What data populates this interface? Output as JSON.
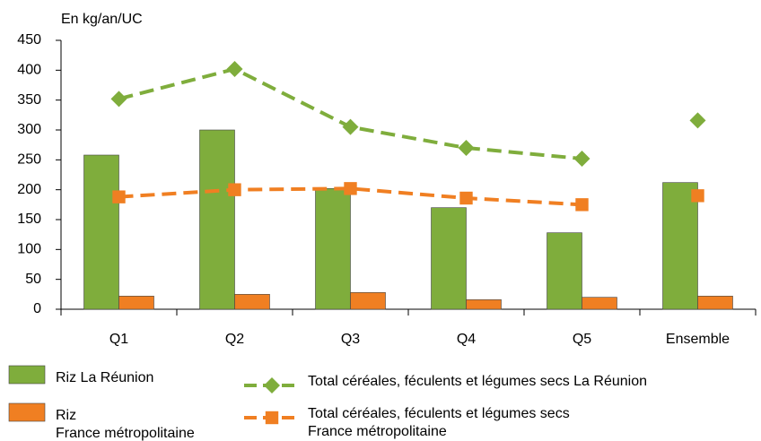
{
  "chart_data": {
    "type": "bar",
    "y_label": "En kg/an/UC",
    "categories": [
      "Q1",
      "Q2",
      "Q3",
      "Q4",
      "Q5",
      "Ensemble"
    ],
    "series": [
      {
        "name": "Riz La Réunion",
        "type": "bar",
        "color": "#7fad3c",
        "values": [
          258,
          300,
          202,
          170,
          128,
          212
        ]
      },
      {
        "name": "Riz\nFrance métropolitaine",
        "type": "bar",
        "color": "#f07f22",
        "values": [
          22,
          25,
          28,
          16,
          20,
          22
        ]
      },
      {
        "name": "Total céréales, féculents et légumes secs La Réunion",
        "type": "line",
        "marker": "diamond",
        "color": "#7fad3c",
        "values": [
          352,
          402,
          305,
          270,
          252,
          316
        ]
      },
      {
        "name": "Total céréales, féculents et légumes secs\nFrance métropolitaine",
        "type": "line",
        "marker": "square",
        "color": "#f07f22",
        "values": [
          188,
          200,
          202,
          186,
          175,
          190
        ]
      }
    ],
    "ylim": [
      0,
      450
    ],
    "yticks": [
      0,
      50,
      100,
      150,
      200,
      250,
      300,
      350,
      400,
      450
    ],
    "grid": false
  }
}
